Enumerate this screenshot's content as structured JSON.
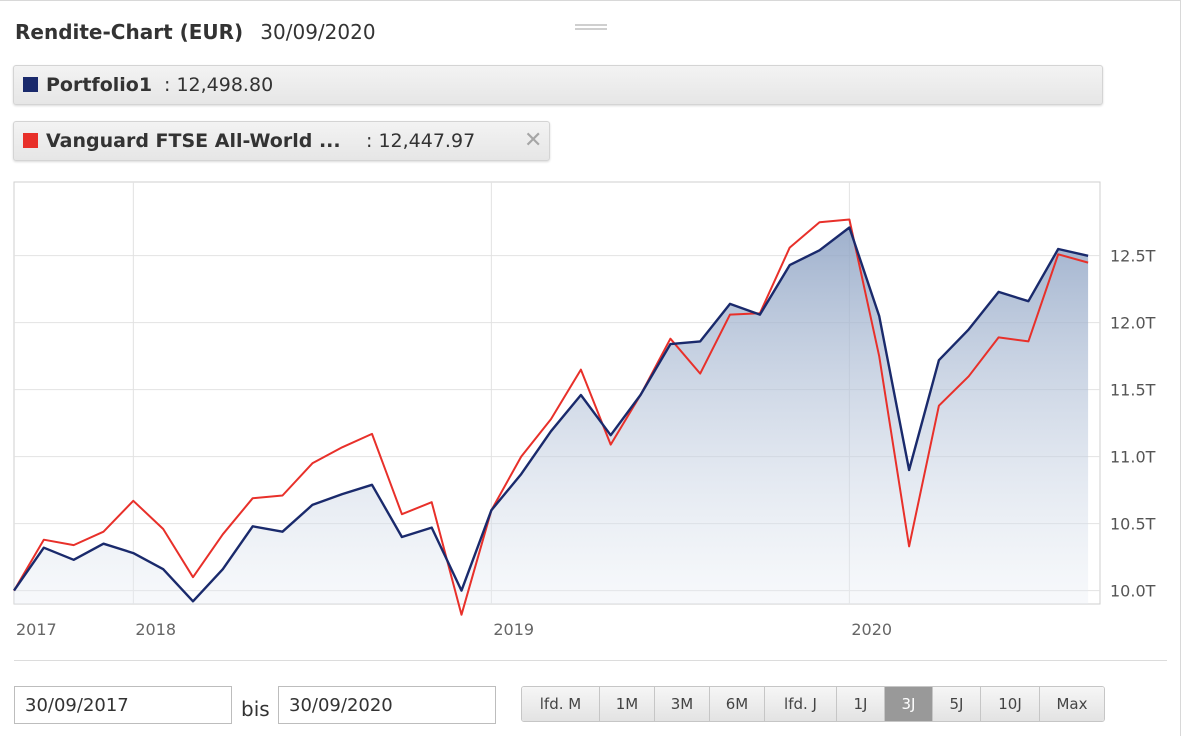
{
  "header": {
    "title": "Rendite-Chart (EUR)",
    "date": "30/09/2020"
  },
  "legend": [
    {
      "name": "Portfolio1",
      "separator": ":",
      "value": "12,498.80",
      "color": "#1a2a6c"
    },
    {
      "name": "Vanguard FTSE All-World ...",
      "separator": ":",
      "value": "12,447.97",
      "color": "#e8302a",
      "close_icon": "close-icon"
    }
  ],
  "controls": {
    "from_date": "30/09/2017",
    "to_label": "bis",
    "to_date": "30/09/2020",
    "ranges": [
      "lfd. M",
      "1M",
      "3M",
      "6M",
      "lfd. J",
      "1J",
      "3J",
      "5J",
      "10J",
      "Max"
    ],
    "active_range": "3J"
  },
  "chart_data": {
    "type": "line",
    "title": "Rendite-Chart (EUR)",
    "x_labels": [
      "2017",
      "2018",
      "2019",
      "2020"
    ],
    "x_label_positions": [
      0,
      4,
      16,
      28
    ],
    "y_ticks": [
      10000,
      10500,
      11000,
      11500,
      12000,
      12500
    ],
    "y_tick_labels": [
      "10.0T",
      "10.5T",
      "11.0T",
      "11.5T",
      "12.0T",
      "12.5T"
    ],
    "ylim": [
      9900,
      13050
    ],
    "xlim": [
      0,
      36.4
    ],
    "series": [
      {
        "name": "Portfolio1",
        "color": "#1a2a6c",
        "filled": true,
        "values": [
          10000,
          10320,
          10230,
          10350,
          10280,
          10160,
          9920,
          10160,
          10480,
          10440,
          10640,
          10720,
          10790,
          10400,
          10470,
          10000,
          10600,
          10870,
          11190,
          11460,
          11160,
          11460,
          11840,
          11860,
          12140,
          12060,
          12430,
          12540,
          12710,
          12050,
          10900,
          11720,
          11950,
          12230,
          12160,
          12550,
          12499
        ]
      },
      {
        "name": "Vanguard FTSE All-World ...",
        "color": "#e8302a",
        "filled": false,
        "values": [
          10000,
          10380,
          10340,
          10440,
          10670,
          10460,
          10100,
          10420,
          10690,
          10710,
          10950,
          11070,
          11170,
          10570,
          10660,
          9820,
          10600,
          11000,
          11280,
          11650,
          11090,
          11460,
          11880,
          11620,
          12060,
          12070,
          12560,
          12750,
          12770,
          11750,
          10330,
          11380,
          11600,
          11890,
          11860,
          12510,
          12448
        ]
      }
    ],
    "grid": true,
    "legend_position": "top-left"
  }
}
